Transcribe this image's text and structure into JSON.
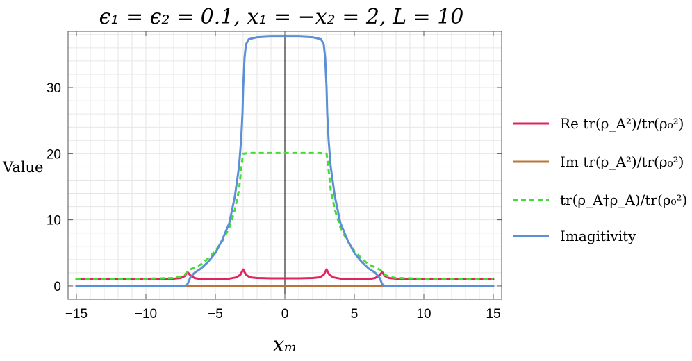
{
  "chart_data": {
    "type": "line",
    "title": "ϵ₁ = ϵ₂ = 0.1, x₁ = −x₂ = 2, L = 10",
    "xlabel": "xₘ",
    "ylabel": "Value",
    "xlim": [
      -15.6,
      15.6
    ],
    "ylim": [
      -2.0,
      38.5
    ],
    "xticks": [
      -15,
      -10,
      -5,
      0,
      5,
      10,
      15
    ],
    "yticks": [
      0,
      10,
      20,
      30
    ],
    "grid": true,
    "legend_position": "right",
    "series": [
      {
        "name": "Re tr(ρ_A²)/tr(ρ₀²)",
        "color": "#e0245e",
        "dash": "solid",
        "x": [
          -15,
          -12,
          -10,
          -8,
          -7.5,
          -7.2,
          -7.0,
          -6.8,
          -6.5,
          -6.0,
          -5.0,
          -4.0,
          -3.5,
          -3.2,
          -3.0,
          -2.8,
          -2.5,
          -2.0,
          -1.0,
          0,
          1.0,
          2.0,
          2.5,
          2.8,
          3.0,
          3.2,
          3.5,
          4.0,
          5.0,
          6.0,
          6.5,
          6.8,
          7.0,
          7.2,
          7.5,
          8,
          10,
          12,
          15
        ],
        "y": [
          1.0,
          1.0,
          1.0,
          1.1,
          1.2,
          1.5,
          2.1,
          1.6,
          1.2,
          1.0,
          1.0,
          1.1,
          1.3,
          1.7,
          2.5,
          1.7,
          1.3,
          1.2,
          1.15,
          1.15,
          1.15,
          1.2,
          1.3,
          1.7,
          2.5,
          1.7,
          1.3,
          1.1,
          1.0,
          1.0,
          1.2,
          1.6,
          2.1,
          1.5,
          1.2,
          1.1,
          1.0,
          1.0,
          1.0
        ]
      },
      {
        "name": "Im tr(ρ_A²)/tr(ρ₀²)",
        "color": "#b8743a",
        "dash": "solid",
        "x": [
          -15,
          -7.05,
          -7.0,
          7.0,
          7.05,
          15
        ],
        "y": [
          0,
          0,
          0.05,
          0.05,
          0,
          0
        ]
      },
      {
        "name": "tr(ρ_A†ρ_A)/tr(ρ₀²)",
        "color": "#44dd33",
        "dash": "dashed",
        "x": [
          -15,
          -12,
          -10,
          -8,
          -7.5,
          -7.2,
          -7.0,
          -6.8,
          -6.5,
          -6.0,
          -5.5,
          -5.0,
          -4.5,
          -4.0,
          -3.6,
          -3.3,
          -3.15,
          -3.05,
          -3.0,
          -2.5,
          -1.0,
          0,
          1.0,
          2.5,
          3.0,
          3.05,
          3.15,
          3.3,
          3.6,
          4.0,
          4.5,
          5.0,
          5.5,
          6.0,
          6.5,
          6.8,
          7.0,
          7.2,
          7.5,
          8,
          10,
          12,
          15
        ],
        "y": [
          1.0,
          1.0,
          1.1,
          1.2,
          1.4,
          1.7,
          2.2,
          2.5,
          2.8,
          3.3,
          4.2,
          5.3,
          6.8,
          8.8,
          11.5,
          14.5,
          17.5,
          19.3,
          20.0,
          20.1,
          20.1,
          20.1,
          20.1,
          20.1,
          20.0,
          19.3,
          17.5,
          14.5,
          11.5,
          8.8,
          6.8,
          5.3,
          4.2,
          3.3,
          2.8,
          2.5,
          2.2,
          1.7,
          1.4,
          1.2,
          1.1,
          1.0,
          1.0
        ]
      },
      {
        "name": "Imagitivity",
        "color": "#5b8fd6",
        "dash": "solid",
        "x": [
          -15,
          -7.2,
          -7.0,
          -6.8,
          -6.5,
          -6.0,
          -5.5,
          -5.0,
          -4.5,
          -4.0,
          -3.6,
          -3.3,
          -3.15,
          -3.05,
          -3.0,
          -2.9,
          -2.8,
          -2.6,
          -2.0,
          -1.0,
          0,
          1.0,
          2.0,
          2.6,
          2.8,
          2.9,
          3.0,
          3.05,
          3.15,
          3.3,
          3.6,
          4.0,
          4.5,
          5.0,
          5.5,
          6.0,
          6.5,
          6.8,
          7.0,
          7.2,
          15
        ],
        "y": [
          0,
          0,
          0.3,
          1.3,
          2.0,
          2.7,
          3.7,
          5.0,
          7.0,
          9.5,
          13.5,
          18.0,
          22.0,
          26.0,
          30.0,
          34.5,
          36.5,
          37.3,
          37.6,
          37.7,
          37.7,
          37.7,
          37.6,
          37.3,
          36.5,
          34.5,
          30.0,
          26.0,
          22.0,
          18.0,
          13.5,
          9.5,
          7.0,
          5.0,
          3.7,
          2.7,
          2.0,
          1.3,
          0.3,
          0,
          0
        ]
      }
    ]
  },
  "legend": {
    "items": [
      {
        "label": "Re tr(ρ_A²)/tr(ρ₀²)"
      },
      {
        "label": "Im tr(ρ_A²)/tr(ρ₀²)"
      },
      {
        "label": "tr(ρ_A†ρ_A)/tr(ρ₀²)"
      },
      {
        "label": "Imagitivity"
      }
    ]
  },
  "colors": {
    "grid": "#e6e6e6",
    "frame": "#555555",
    "zero_line": "#000000"
  }
}
